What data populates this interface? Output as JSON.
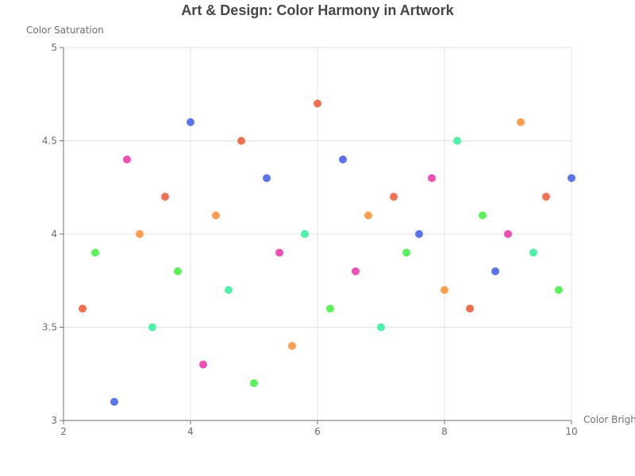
{
  "chart_data": {
    "type": "scatter",
    "title": "Art & Design: Color Harmony in Artwork",
    "xlabel": "Color Brigh",
    "ylabel": "Color Saturation",
    "xlim": [
      2,
      10
    ],
    "ylim": [
      3,
      5
    ],
    "xticks": [
      "2",
      "4",
      "6",
      "8",
      "10"
    ],
    "yticks": [
      "3",
      "3.5",
      "4",
      "4.5",
      "5"
    ],
    "grid": true,
    "points": [
      {
        "x": 2.3,
        "y": 3.6,
        "color": "#f0704f"
      },
      {
        "x": 2.5,
        "y": 3.9,
        "color": "#5cf25c"
      },
      {
        "x": 2.8,
        "y": 3.1,
        "color": "#5a73f0"
      },
      {
        "x": 3.0,
        "y": 4.4,
        "color": "#f04fb4"
      },
      {
        "x": 3.2,
        "y": 4.0,
        "color": "#ff9e4f"
      },
      {
        "x": 3.4,
        "y": 3.5,
        "color": "#4ff0a8"
      },
      {
        "x": 3.6,
        "y": 4.2,
        "color": "#f0704f"
      },
      {
        "x": 3.8,
        "y": 3.8,
        "color": "#5cf25c"
      },
      {
        "x": 4.0,
        "y": 4.6,
        "color": "#5a73f0"
      },
      {
        "x": 4.2,
        "y": 3.3,
        "color": "#f04fb4"
      },
      {
        "x": 4.4,
        "y": 4.1,
        "color": "#ff9e4f"
      },
      {
        "x": 4.6,
        "y": 3.7,
        "color": "#4ff0a8"
      },
      {
        "x": 4.8,
        "y": 4.5,
        "color": "#f0704f"
      },
      {
        "x": 5.0,
        "y": 3.2,
        "color": "#5cf25c"
      },
      {
        "x": 5.2,
        "y": 4.3,
        "color": "#5a73f0"
      },
      {
        "x": 5.4,
        "y": 3.9,
        "color": "#f04fb4"
      },
      {
        "x": 5.6,
        "y": 3.4,
        "color": "#ff9e4f"
      },
      {
        "x": 5.8,
        "y": 4.0,
        "color": "#4ff0a8"
      },
      {
        "x": 6.0,
        "y": 4.7,
        "color": "#f0704f"
      },
      {
        "x": 6.2,
        "y": 3.6,
        "color": "#5cf25c"
      },
      {
        "x": 6.4,
        "y": 4.4,
        "color": "#5a73f0"
      },
      {
        "x": 6.6,
        "y": 3.8,
        "color": "#f04fb4"
      },
      {
        "x": 6.8,
        "y": 4.1,
        "color": "#ff9e4f"
      },
      {
        "x": 7.0,
        "y": 3.5,
        "color": "#4ff0a8"
      },
      {
        "x": 7.2,
        "y": 4.2,
        "color": "#f0704f"
      },
      {
        "x": 7.4,
        "y": 3.9,
        "color": "#5cf25c"
      },
      {
        "x": 7.6,
        "y": 4.0,
        "color": "#5a73f0"
      },
      {
        "x": 7.8,
        "y": 4.3,
        "color": "#f04fb4"
      },
      {
        "x": 8.0,
        "y": 3.7,
        "color": "#ff9e4f"
      },
      {
        "x": 8.2,
        "y": 4.5,
        "color": "#4ff0a8"
      },
      {
        "x": 8.4,
        "y": 3.6,
        "color": "#f0704f"
      },
      {
        "x": 8.6,
        "y": 4.1,
        "color": "#5cf25c"
      },
      {
        "x": 8.8,
        "y": 3.8,
        "color": "#5a73f0"
      },
      {
        "x": 9.0,
        "y": 4.0,
        "color": "#f04fb4"
      },
      {
        "x": 9.2,
        "y": 4.6,
        "color": "#ff9e4f"
      },
      {
        "x": 9.4,
        "y": 3.9,
        "color": "#4ff0a8"
      },
      {
        "x": 9.6,
        "y": 4.2,
        "color": "#f0704f"
      },
      {
        "x": 9.8,
        "y": 3.7,
        "color": "#5cf25c"
      },
      {
        "x": 10.0,
        "y": 4.3,
        "color": "#5a73f0"
      }
    ]
  }
}
